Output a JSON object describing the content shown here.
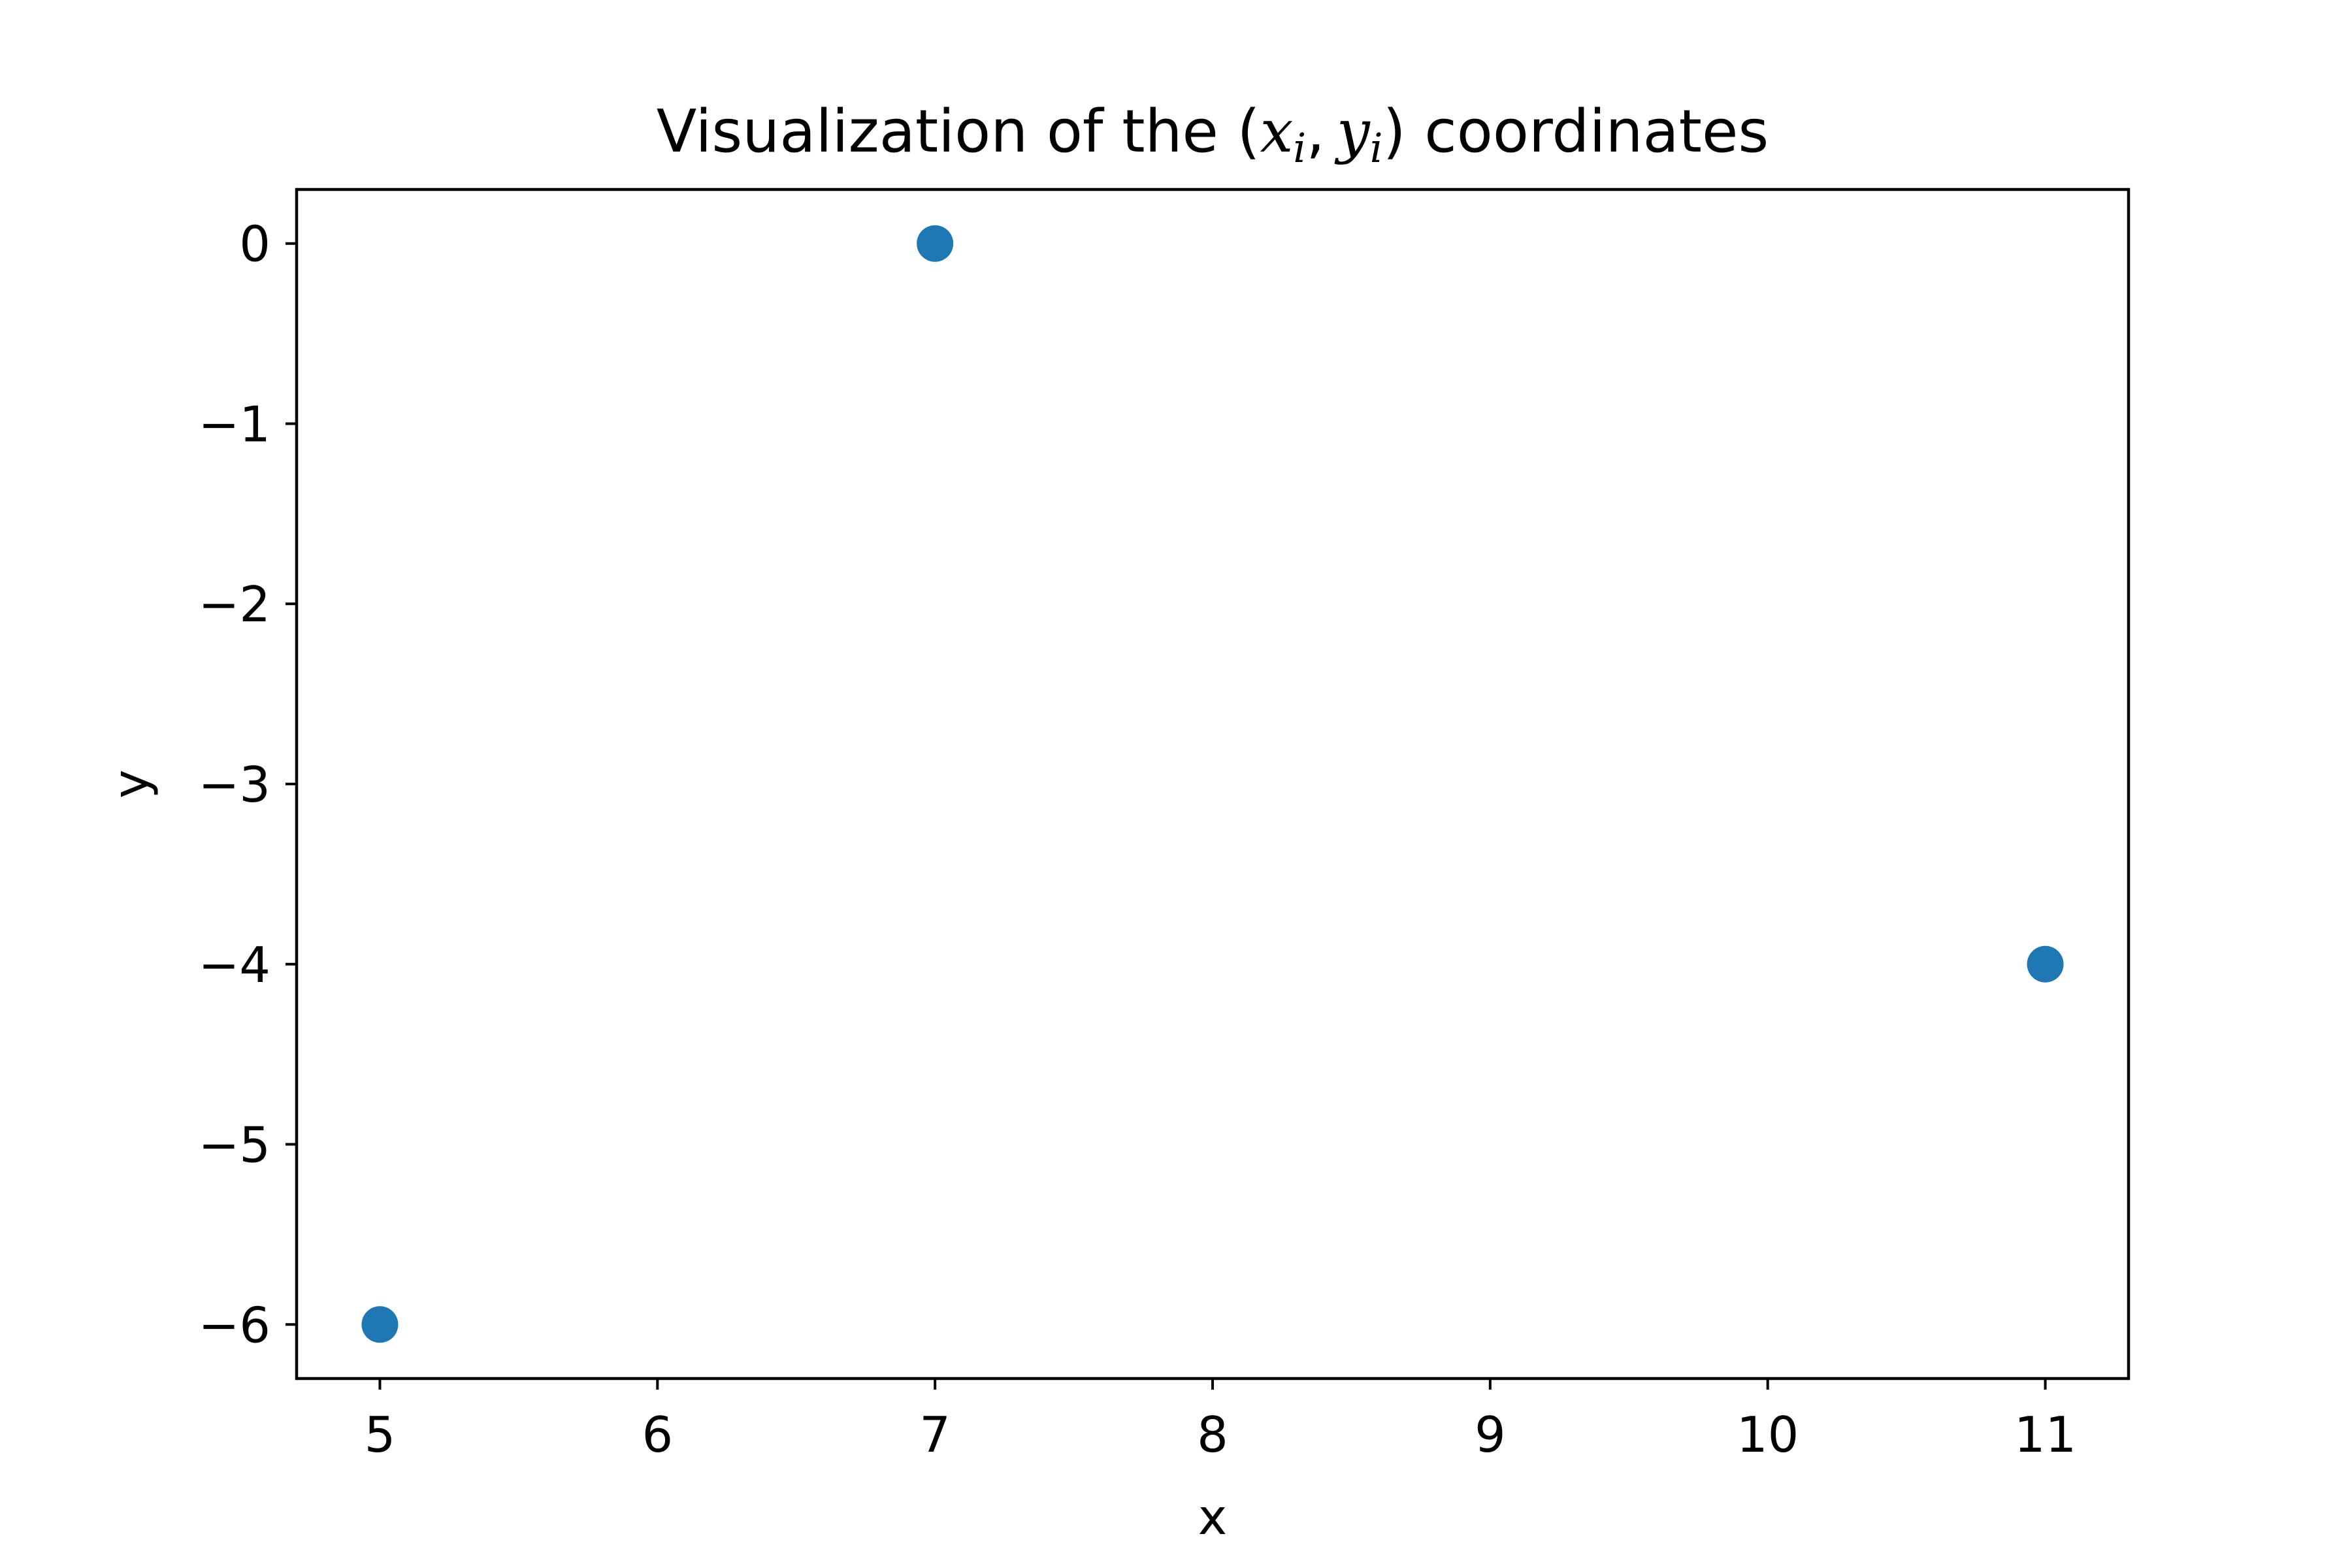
{
  "chart_data": {
    "type": "scatter",
    "title": {
      "prefix": "Visualization of the ",
      "open": "(",
      "x_sym": "x",
      "x_sub": "i",
      "comma": ",",
      "y_sym": "y",
      "y_sub": "i",
      "close": ")",
      "suffix": " coordinates"
    },
    "xlabel": "x",
    "ylabel": "y",
    "x": [
      5,
      7,
      11
    ],
    "y": [
      -6,
      0,
      -4
    ],
    "xlim": [
      4.7,
      11.3
    ],
    "ylim": [
      -6.3,
      0.3
    ],
    "xticks": [
      5,
      6,
      7,
      8,
      9,
      10,
      11
    ],
    "xtick_labels": [
      "5",
      "6",
      "7",
      "8",
      "9",
      "10",
      "11"
    ],
    "yticks": [
      0,
      -1,
      -2,
      -3,
      -4,
      -5,
      -6
    ],
    "ytick_labels": [
      "0",
      "−1",
      "−2",
      "−3",
      "−4",
      "−5",
      "−6"
    ],
    "marker_color": "#1f77b4",
    "grid": false
  }
}
